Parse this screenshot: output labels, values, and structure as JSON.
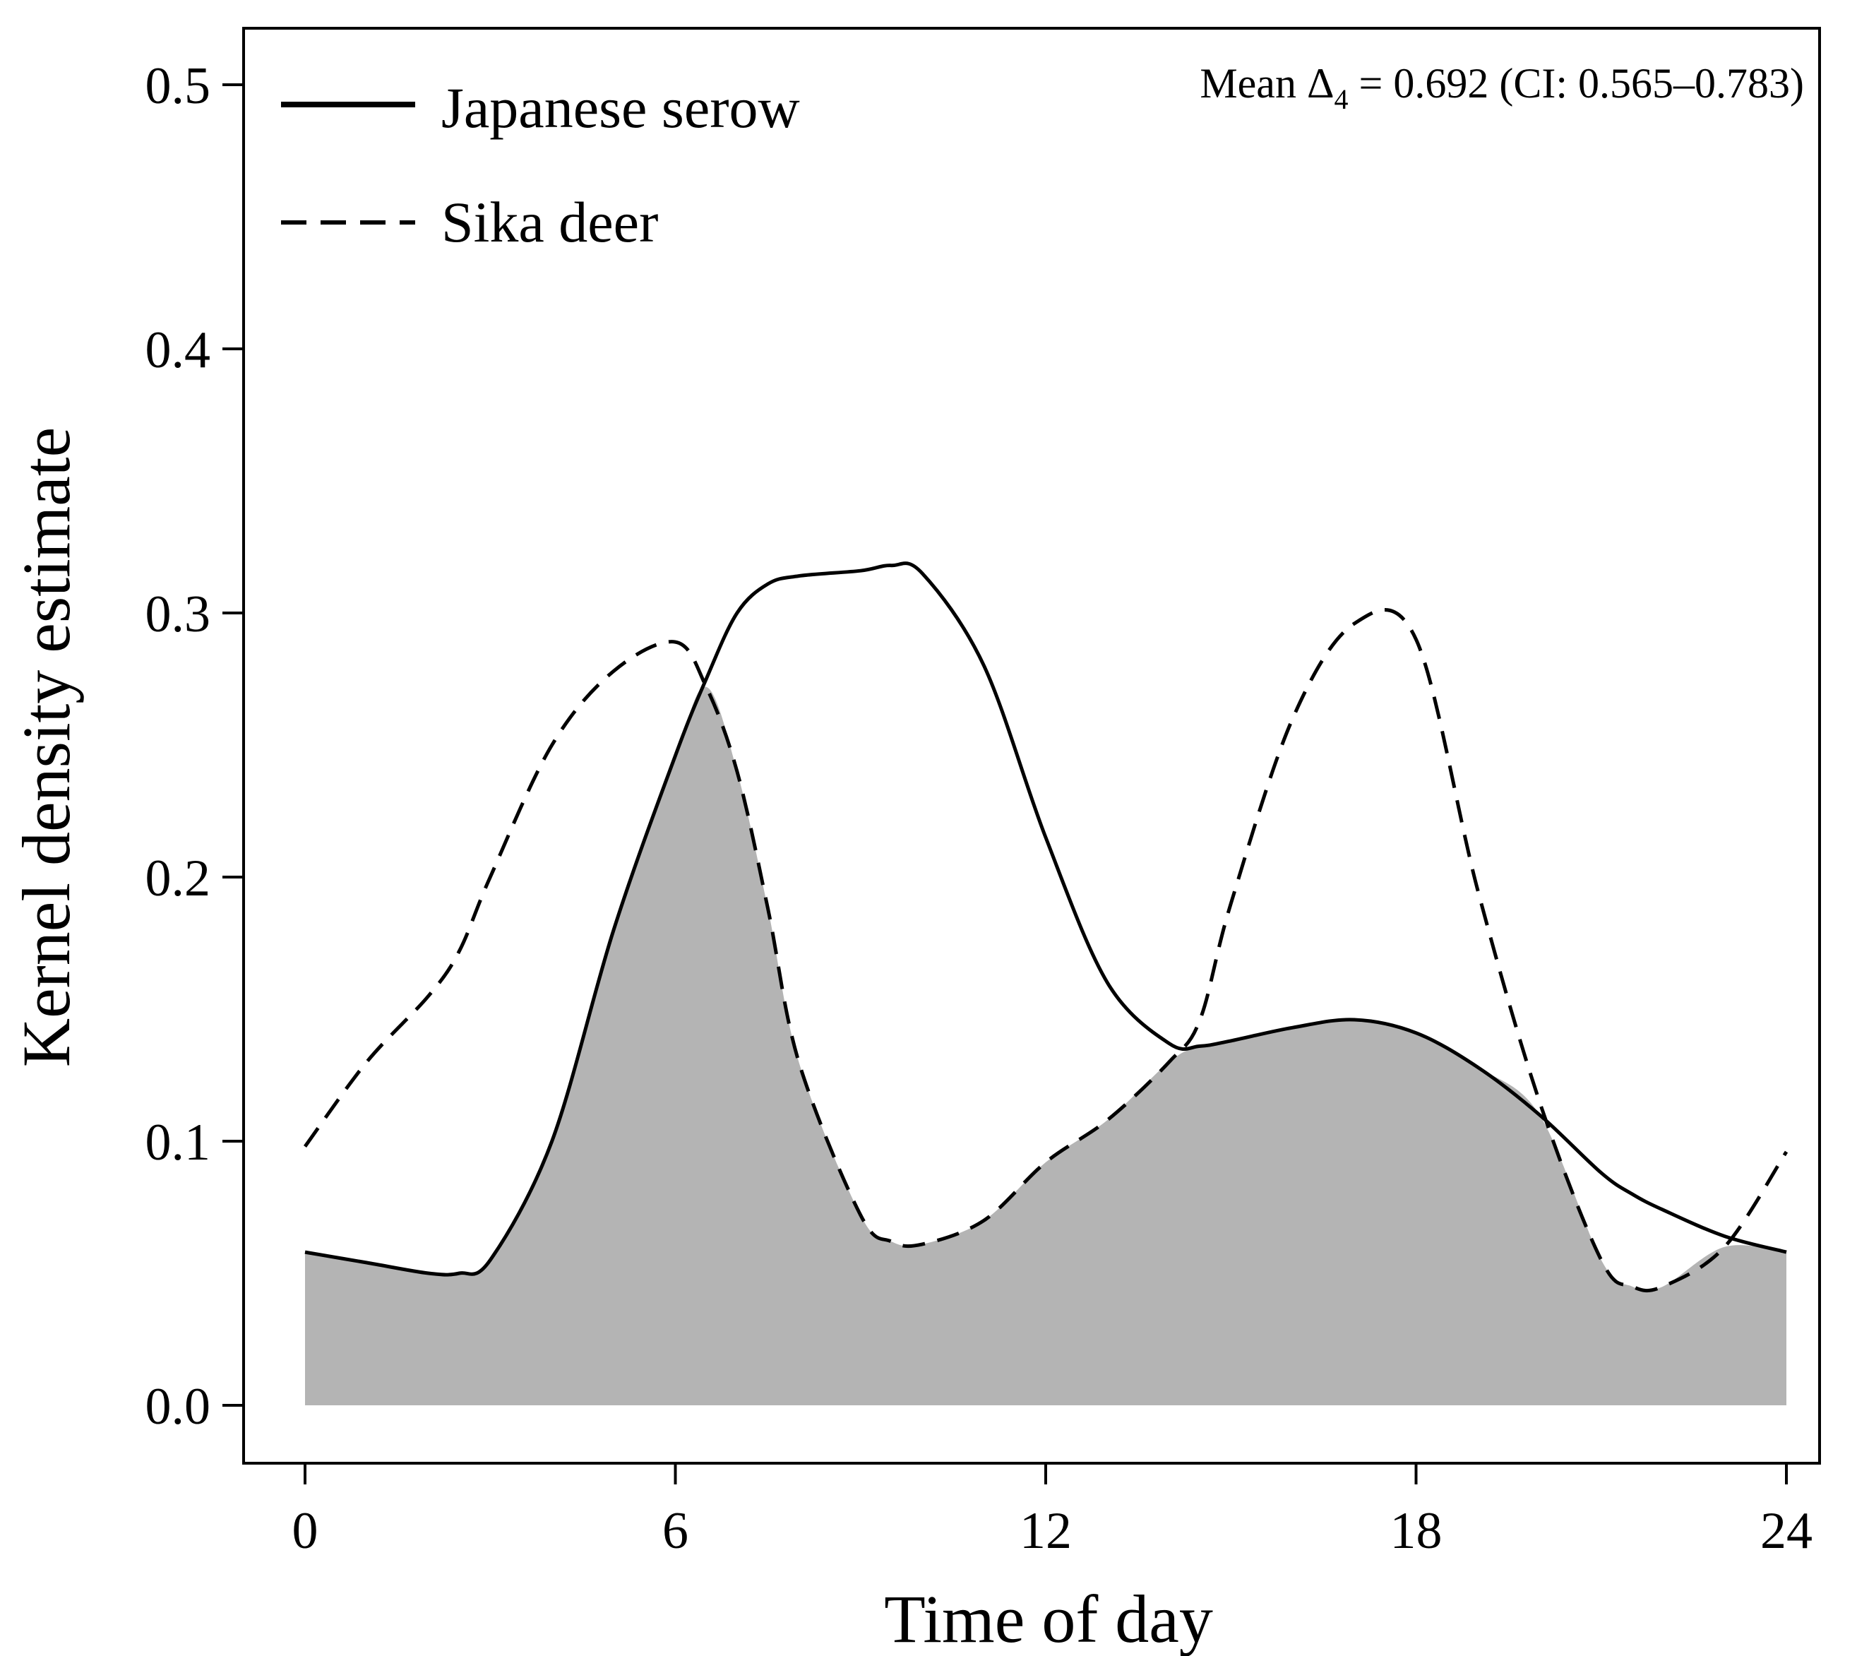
{
  "chart_data": {
    "type": "line",
    "title": "",
    "xlabel": "Time of day",
    "ylabel": "Kernel density estimate",
    "xlim": [
      0,
      24
    ],
    "ylim": [
      0,
      0.5
    ],
    "x_ticks": [
      "0",
      "6",
      "12",
      "18",
      "24"
    ],
    "y_ticks": [
      "0.0",
      "0.1",
      "0.2",
      "0.3",
      "0.4",
      "0.5"
    ],
    "x_tick_values": [
      0,
      6,
      12,
      18,
      24
    ],
    "y_tick_values": [
      0,
      0.1,
      0.2,
      0.3,
      0.4,
      0.5
    ],
    "annotation": {
      "prefix": "Mean Δ",
      "subscript": "4",
      "suffix": " = 0.692  (CI: 0.565–0.783)"
    },
    "legend": {
      "placement": "top-left"
    },
    "overlap_fill_color": "#b4b4b4",
    "line_color": "#000000",
    "x": [
      0,
      1,
      2,
      2.5,
      3,
      4,
      5,
      6,
      6.5,
      7,
      7.5,
      8,
      9,
      9.5,
      10,
      11,
      12,
      13,
      14,
      14.5,
      15,
      16,
      17,
      18,
      19,
      20,
      21,
      21.5,
      22,
      23,
      24
    ],
    "series": [
      {
        "name": "Japanese serow",
        "style": "solid",
        "values": [
          0.058,
          0.054,
          0.05,
          0.05,
          0.055,
          0.1,
          0.18,
          0.246,
          0.275,
          0.3,
          0.311,
          0.314,
          0.316,
          0.318,
          0.315,
          0.28,
          0.215,
          0.16,
          0.137,
          0.136,
          0.138,
          0.143,
          0.146,
          0.141,
          0.128,
          0.11,
          0.088,
          0.08,
          0.074,
          0.064,
          0.058
        ]
      },
      {
        "name": "Sika deer",
        "style": "dashed",
        "values": [
          0.098,
          0.13,
          0.155,
          0.172,
          0.2,
          0.25,
          0.278,
          0.289,
          0.272,
          0.24,
          0.188,
          0.13,
          0.072,
          0.062,
          0.061,
          0.07,
          0.092,
          0.108,
          0.13,
          0.146,
          0.19,
          0.26,
          0.296,
          0.29,
          0.195,
          0.115,
          0.055,
          0.045,
          0.045,
          0.06,
          0.096
        ]
      }
    ]
  }
}
